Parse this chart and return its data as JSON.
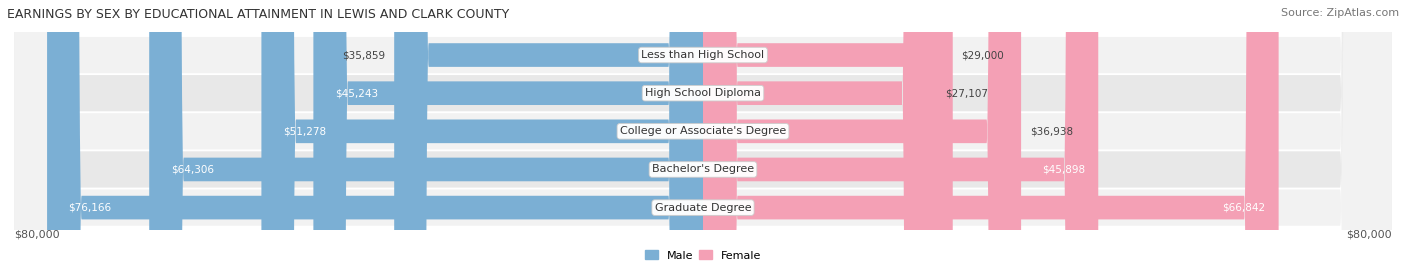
{
  "title": "EARNINGS BY SEX BY EDUCATIONAL ATTAINMENT IN LEWIS AND CLARK COUNTY",
  "source": "Source: ZipAtlas.com",
  "categories": [
    "Less than High School",
    "High School Diploma",
    "College or Associate's Degree",
    "Bachelor's Degree",
    "Graduate Degree"
  ],
  "male_values": [
    35859,
    45243,
    51278,
    64306,
    76166
  ],
  "female_values": [
    29000,
    27107,
    36938,
    45898,
    66842
  ],
  "max_value": 80000,
  "male_color": "#7BAFD4",
  "female_color": "#F4A0B5",
  "male_label": "Male",
  "female_label": "Female",
  "bg_color": "#FFFFFF",
  "row_bg_light": "#F2F2F2",
  "row_bg_dark": "#E8E8E8",
  "axis_label_left": "$80,000",
  "axis_label_right": "$80,000",
  "title_fontsize": 9,
  "source_fontsize": 8,
  "bar_fontsize": 7.5,
  "label_fontsize": 8,
  "cat_label_fontsize": 8
}
